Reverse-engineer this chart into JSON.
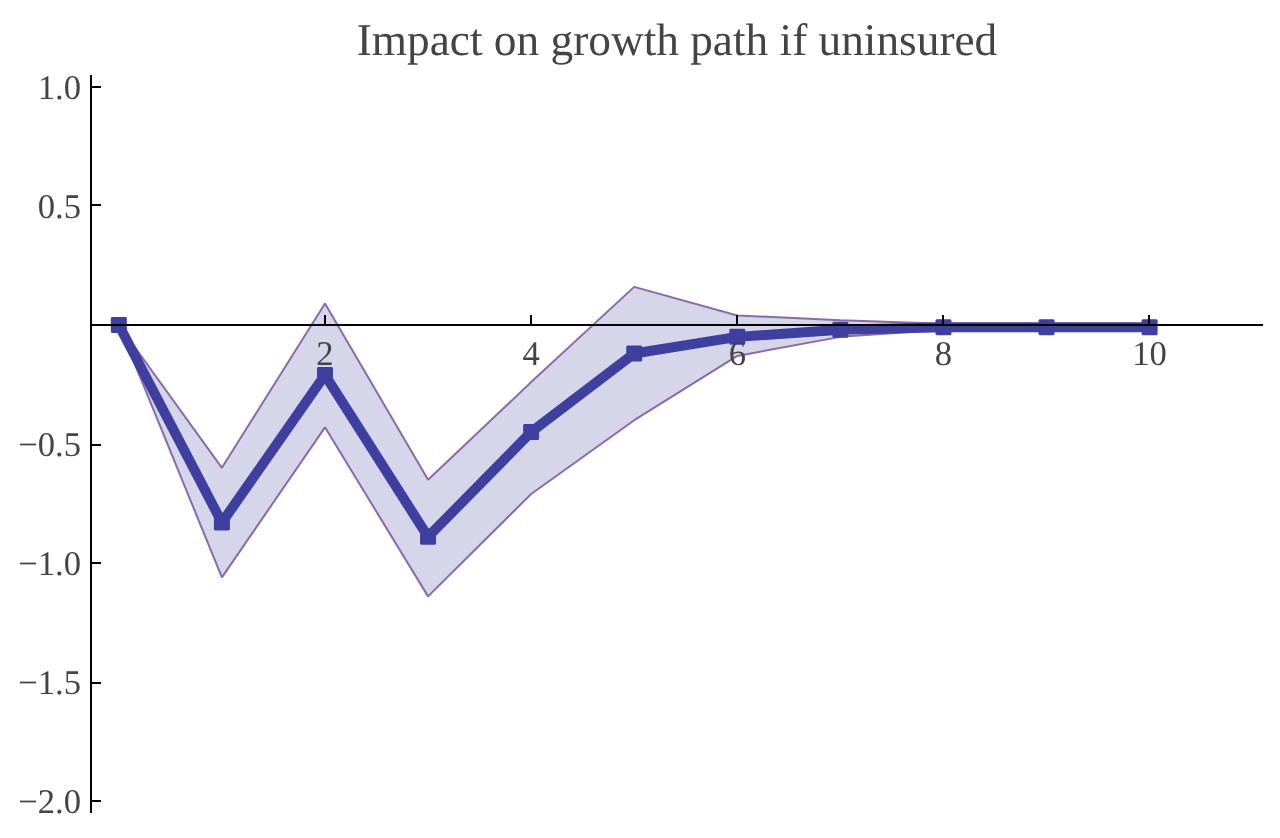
{
  "chart_data": {
    "type": "line",
    "title": "Impact on growth path if uninsured",
    "x": [
      0,
      1,
      2,
      3,
      4,
      5,
      6,
      7,
      8,
      9,
      10
    ],
    "series": [
      {
        "color": "#3f3f9f",
        "values": [
          0,
          -0.83,
          -0.21,
          -0.89,
          -0.45,
          -0.12,
          -0.05,
          -0.02,
          -0.01,
          -0.01,
          -0.01
        ],
        "upper": [
          0,
          -0.6,
          0.09,
          -0.65,
          -0.24,
          0.16,
          0.04,
          0.02,
          0.005,
          0,
          0
        ],
        "lower": [
          0,
          -1.06,
          -0.43,
          -1.14,
          -0.71,
          -0.4,
          -0.13,
          -0.05,
          -0.02,
          -0.015,
          -0.01
        ]
      }
    ],
    "xlim": [
      -0.27,
      11.1
    ],
    "ylim": [
      -2.05,
      1.05
    ],
    "xticks": [
      2,
      4,
      6,
      8,
      10
    ],
    "yticks": [
      {
        "value": 1,
        "label": "1.0"
      },
      {
        "value": 0.5,
        "label": "0.5"
      },
      {
        "value": -0.5,
        "label": "−0.5"
      },
      {
        "value": -1,
        "label": "−1.0"
      },
      {
        "value": -1.5,
        "label": "−1.5"
      },
      {
        "value": -2,
        "label": "−2.0"
      }
    ],
    "grid": false,
    "marker": "square",
    "line_style": "solid"
  }
}
